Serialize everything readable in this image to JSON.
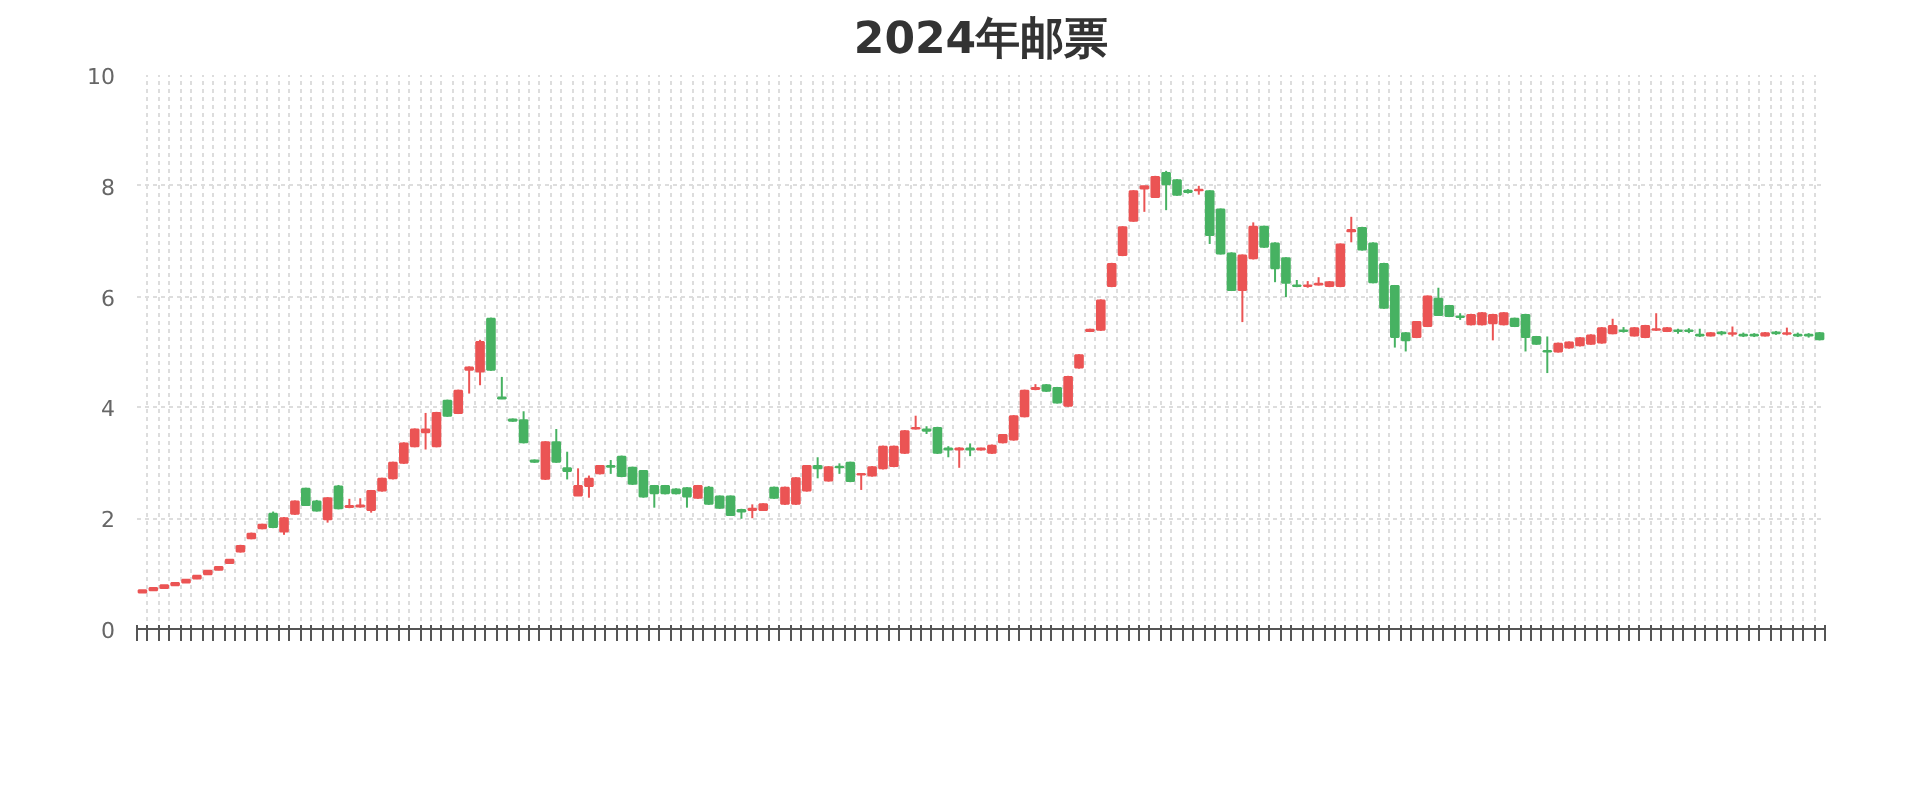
{
  "chart_data": {
    "type": "candlestick",
    "title": "2024年邮票",
    "categories": [
      null,
      null,
      null,
      null,
      null,
      null,
      null,
      null,
      null,
      null,
      null,
      null,
      null,
      null,
      null,
      null,
      null,
      null,
      null,
      null,
      null,
      null,
      null,
      null,
      null,
      null,
      null,
      null,
      null,
      null,
      null,
      null,
      null,
      null,
      null,
      null,
      null,
      null,
      null,
      null,
      null,
      null,
      null,
      null,
      null,
      null,
      null,
      null,
      null,
      null,
      null,
      null,
      null,
      null,
      null,
      null,
      null,
      null,
      null,
      null,
      null,
      null,
      null,
      null,
      null,
      null,
      null,
      null,
      null,
      null,
      null,
      null,
      null,
      null,
      null,
      null,
      null,
      null,
      null,
      null,
      null,
      null,
      null,
      null,
      null,
      null,
      null,
      null,
      null,
      null,
      null,
      null,
      null,
      null,
      null,
      null,
      null,
      null,
      null,
      null,
      null,
      null,
      null,
      null,
      null,
      null,
      null,
      null,
      null,
      null,
      null,
      null,
      null,
      null,
      null,
      null,
      null,
      null,
      null,
      null,
      null,
      null,
      null,
      null,
      null,
      null,
      null,
      null,
      null,
      null,
      null,
      null,
      null,
      null,
      null,
      null,
      null,
      null,
      null,
      null,
      null,
      null,
      null,
      null,
      null,
      null,
      null,
      null,
      null,
      null,
      null,
      null,
      null,
      null,
      null
    ],
    "ohlc": [
      [
        0.66,
        0.7,
        0.65,
        0.7
      ],
      [
        0.7,
        0.74,
        0.69,
        0.74
      ],
      [
        0.74,
        0.79,
        0.73,
        0.79
      ],
      [
        0.79,
        0.83,
        0.78,
        0.83
      ],
      [
        0.84,
        0.89,
        0.83,
        0.89
      ],
      [
        0.91,
        0.96,
        0.9,
        0.96
      ],
      [
        0.99,
        1.05,
        0.98,
        1.05
      ],
      [
        1.07,
        1.12,
        1.06,
        1.12
      ],
      [
        1.19,
        1.25,
        1.18,
        1.25
      ],
      [
        1.4,
        1.52,
        1.38,
        1.5
      ],
      [
        1.64,
        1.74,
        1.62,
        1.72
      ],
      [
        1.82,
        1.9,
        1.8,
        1.88
      ],
      [
        2.08,
        2.12,
        1.82,
        1.84
      ],
      [
        1.76,
        2.02,
        1.7,
        2.0
      ],
      [
        2.08,
        2.32,
        2.06,
        2.3
      ],
      [
        2.53,
        2.55,
        2.22,
        2.24
      ],
      [
        2.3,
        2.33,
        2.12,
        2.14
      ],
      [
        1.98,
        2.38,
        1.92,
        2.36
      ],
      [
        2.57,
        2.6,
        2.16,
        2.18
      ],
      [
        2.2,
        2.35,
        2.18,
        2.22
      ],
      [
        2.21,
        2.36,
        2.19,
        2.23
      ],
      [
        2.15,
        2.51,
        2.1,
        2.49
      ],
      [
        2.5,
        2.73,
        2.48,
        2.71
      ],
      [
        2.72,
        3.02,
        2.7,
        3.0
      ],
      [
        3.0,
        3.37,
        2.98,
        3.35
      ],
      [
        3.3,
        3.62,
        3.28,
        3.6
      ],
      [
        3.55,
        3.9,
        3.24,
        3.6
      ],
      [
        3.3,
        3.92,
        3.28,
        3.9
      ],
      [
        4.12,
        4.14,
        3.83,
        3.85
      ],
      [
        3.9,
        4.32,
        3.88,
        4.3
      ],
      [
        4.68,
        4.74,
        4.25,
        4.72
      ],
      [
        4.65,
        5.22,
        4.4,
        5.18
      ],
      [
        5.6,
        5.62,
        4.66,
        4.68
      ],
      [
        4.18,
        4.55,
        4.15,
        4.16
      ],
      [
        3.78,
        3.8,
        3.74,
        3.76
      ],
      [
        3.77,
        3.93,
        3.35,
        3.37
      ],
      [
        3.04,
        3.06,
        3.0,
        3.02
      ],
      [
        2.71,
        3.39,
        2.69,
        3.37
      ],
      [
        3.37,
        3.61,
        3.0,
        3.02
      ],
      [
        2.9,
        3.2,
        2.7,
        2.85
      ],
      [
        2.41,
        2.9,
        2.4,
        2.58
      ],
      [
        2.58,
        2.77,
        2.37,
        2.71
      ],
      [
        2.81,
        2.96,
        2.79,
        2.94
      ],
      [
        2.94,
        3.05,
        2.8,
        2.93
      ],
      [
        3.11,
        3.13,
        2.74,
        2.76
      ],
      [
        2.91,
        2.93,
        2.6,
        2.62
      ],
      [
        2.85,
        2.87,
        2.37,
        2.39
      ],
      [
        2.58,
        2.6,
        2.19,
        2.45
      ],
      [
        2.58,
        2.6,
        2.43,
        2.45
      ],
      [
        2.52,
        2.54,
        2.43,
        2.45
      ],
      [
        2.54,
        2.56,
        2.19,
        2.39
      ],
      [
        2.37,
        2.6,
        2.35,
        2.58
      ],
      [
        2.55,
        2.58,
        2.24,
        2.26
      ],
      [
        2.39,
        2.41,
        2.17,
        2.19
      ],
      [
        2.39,
        2.41,
        2.04,
        2.06
      ],
      [
        2.15,
        2.17,
        1.99,
        2.12
      ],
      [
        2.15,
        2.25,
        2.0,
        2.17
      ],
      [
        2.15,
        2.27,
        2.13,
        2.25
      ],
      [
        2.55,
        2.57,
        2.35,
        2.37
      ],
      [
        2.26,
        2.57,
        2.24,
        2.55
      ],
      [
        2.26,
        2.74,
        2.24,
        2.72
      ],
      [
        2.5,
        2.96,
        2.48,
        2.94
      ],
      [
        2.94,
        3.1,
        2.72,
        2.9
      ],
      [
        2.68,
        2.94,
        2.66,
        2.92
      ],
      [
        2.93,
        2.99,
        2.8,
        2.92
      ],
      [
        3.0,
        3.02,
        2.65,
        2.67
      ],
      [
        2.79,
        2.81,
        2.51,
        2.8
      ],
      [
        2.77,
        2.94,
        2.75,
        2.92
      ],
      [
        2.9,
        3.31,
        2.88,
        3.29
      ],
      [
        2.94,
        3.31,
        2.92,
        3.29
      ],
      [
        3.18,
        3.59,
        3.16,
        3.57
      ],
      [
        3.62,
        3.85,
        3.6,
        3.63
      ],
      [
        3.6,
        3.66,
        3.52,
        3.58
      ],
      [
        3.63,
        3.65,
        3.16,
        3.18
      ],
      [
        3.26,
        3.3,
        3.1,
        3.24
      ],
      [
        3.24,
        3.28,
        2.91,
        3.26
      ],
      [
        3.26,
        3.35,
        3.12,
        3.24
      ],
      [
        3.24,
        3.27,
        3.22,
        3.26
      ],
      [
        3.18,
        3.33,
        3.16,
        3.31
      ],
      [
        3.37,
        3.52,
        3.35,
        3.5
      ],
      [
        3.42,
        3.86,
        3.4,
        3.84
      ],
      [
        3.84,
        4.32,
        3.82,
        4.3
      ],
      [
        4.33,
        4.42,
        4.31,
        4.35
      ],
      [
        4.4,
        4.42,
        4.28,
        4.3
      ],
      [
        4.35,
        4.37,
        4.07,
        4.09
      ],
      [
        4.03,
        4.57,
        4.01,
        4.55
      ],
      [
        4.72,
        4.96,
        4.7,
        4.94
      ],
      [
        5.38,
        5.42,
        5.36,
        5.4
      ],
      [
        5.4,
        5.95,
        5.38,
        5.93
      ],
      [
        6.19,
        6.61,
        6.17,
        6.59
      ],
      [
        6.75,
        7.27,
        6.73,
        7.25
      ],
      [
        7.37,
        7.92,
        7.35,
        7.9
      ],
      [
        7.95,
        8.0,
        7.53,
        7.99
      ],
      [
        7.8,
        8.18,
        7.78,
        8.16
      ],
      [
        8.23,
        8.27,
        7.56,
        8.03
      ],
      [
        8.1,
        8.12,
        7.82,
        7.84
      ],
      [
        7.91,
        7.94,
        7.86,
        7.89
      ],
      [
        7.92,
        8.0,
        7.84,
        7.93
      ],
      [
        7.9,
        7.92,
        6.95,
        7.11
      ],
      [
        7.57,
        7.59,
        6.76,
        6.78
      ],
      [
        6.78,
        6.8,
        6.1,
        6.12
      ],
      [
        6.12,
        6.76,
        5.54,
        6.74
      ],
      [
        6.69,
        7.34,
        6.67,
        7.26
      ],
      [
        7.26,
        7.28,
        6.88,
        6.9
      ],
      [
        6.96,
        6.98,
        6.26,
        6.51
      ],
      [
        6.69,
        6.71,
        5.99,
        6.25
      ],
      [
        6.2,
        6.3,
        6.17,
        6.19
      ],
      [
        6.19,
        6.28,
        6.16,
        6.2
      ],
      [
        6.22,
        6.35,
        6.2,
        6.23
      ],
      [
        6.19,
        6.28,
        6.17,
        6.26
      ],
      [
        6.19,
        6.96,
        6.17,
        6.94
      ],
      [
        7.18,
        7.44,
        6.98,
        7.2
      ],
      [
        7.24,
        7.26,
        6.83,
        6.85
      ],
      [
        6.96,
        6.98,
        6.24,
        6.26
      ],
      [
        6.59,
        6.61,
        5.78,
        5.8
      ],
      [
        6.19,
        6.21,
        5.08,
        5.27
      ],
      [
        5.34,
        5.36,
        5.01,
        5.21
      ],
      [
        5.27,
        5.56,
        5.25,
        5.54
      ],
      [
        5.47,
        6.02,
        5.45,
        6.0
      ],
      [
        5.96,
        6.16,
        5.65,
        5.67
      ],
      [
        5.83,
        5.85,
        5.63,
        5.65
      ],
      [
        5.64,
        5.7,
        5.58,
        5.63
      ],
      [
        5.5,
        5.69,
        5.48,
        5.67
      ],
      [
        5.5,
        5.72,
        5.48,
        5.7
      ],
      [
        5.52,
        5.69,
        5.21,
        5.67
      ],
      [
        5.5,
        5.72,
        5.48,
        5.7
      ],
      [
        5.6,
        5.62,
        5.45,
        5.47
      ],
      [
        5.67,
        5.69,
        5.01,
        5.27
      ],
      [
        5.27,
        5.29,
        5.13,
        5.15
      ],
      [
        5.02,
        5.28,
        4.62,
        5.01
      ],
      [
        5.01,
        5.17,
        4.99,
        5.15
      ],
      [
        5.08,
        5.19,
        5.06,
        5.17
      ],
      [
        5.12,
        5.27,
        5.1,
        5.25
      ],
      [
        5.15,
        5.32,
        5.13,
        5.3
      ],
      [
        5.17,
        5.45,
        5.15,
        5.43
      ],
      [
        5.34,
        5.6,
        5.32,
        5.47
      ],
      [
        5.39,
        5.45,
        5.35,
        5.38
      ],
      [
        5.3,
        5.45,
        5.28,
        5.43
      ],
      [
        5.27,
        5.49,
        5.25,
        5.47
      ],
      [
        5.4,
        5.7,
        5.38,
        5.41
      ],
      [
        5.38,
        5.45,
        5.36,
        5.43
      ],
      [
        5.39,
        5.42,
        5.33,
        5.38
      ],
      [
        5.39,
        5.43,
        5.34,
        5.38
      ],
      [
        5.31,
        5.42,
        5.27,
        5.3
      ],
      [
        5.3,
        5.36,
        5.28,
        5.34
      ],
      [
        5.35,
        5.38,
        5.3,
        5.34
      ],
      [
        5.33,
        5.46,
        5.28,
        5.34
      ],
      [
        5.31,
        5.35,
        5.27,
        5.3
      ],
      [
        5.31,
        5.34,
        5.27,
        5.3
      ],
      [
        5.3,
        5.36,
        5.28,
        5.34
      ],
      [
        5.35,
        5.38,
        5.31,
        5.34
      ],
      [
        5.33,
        5.44,
        5.3,
        5.34
      ],
      [
        5.31,
        5.35,
        5.27,
        5.3
      ],
      [
        5.31,
        5.34,
        5.26,
        5.3
      ],
      [
        5.34,
        5.36,
        5.21,
        5.23
      ]
    ],
    "colors": [
      "#eb5454",
      "#eb5454",
      "#eb5454",
      "#eb5454",
      "#eb5454",
      "#eb5454",
      "#eb5454",
      "#eb5454",
      "#eb5454",
      "#eb5454",
      "#eb5454",
      "#eb5454",
      "#47b262",
      "#eb5454",
      "#eb5454",
      "#47b262",
      "#47b262",
      "#eb5454",
      "#47b262",
      "#eb5454",
      "#eb5454",
      "#eb5454",
      "#eb5454",
      "#eb5454",
      "#eb5454",
      "#eb5454",
      "#eb5454",
      "#eb5454",
      "#47b262",
      "#eb5454",
      "#eb5454",
      "#eb5454",
      "#47b262",
      "#47b262",
      "#47b262",
      "#47b262",
      "#47b262",
      "#eb5454",
      "#47b262",
      "#47b262",
      "#eb5454",
      "#eb5454",
      "#eb5454",
      "#47b262",
      "#47b262",
      "#47b262",
      "#47b262",
      "#47b262",
      "#47b262",
      "#47b262",
      "#47b262",
      "#eb5454",
      "#47b262",
      "#47b262",
      "#47b262",
      "#47b262",
      "#eb5454",
      "#eb5454",
      "#47b262",
      "#eb5454",
      "#eb5454",
      "#eb5454",
      "#47b262",
      "#eb5454",
      "#47b262",
      "#47b262",
      "#eb5454",
      "#eb5454",
      "#eb5454",
      "#eb5454",
      "#eb5454",
      "#eb5454",
      "#47b262",
      "#47b262",
      "#47b262",
      "#eb5454",
      "#47b262",
      "#eb5454",
      "#eb5454",
      "#eb5454",
      "#eb5454",
      "#eb5454",
      "#eb5454",
      "#47b262",
      "#47b262",
      "#eb5454",
      "#eb5454",
      "#eb5454",
      "#eb5454",
      "#eb5454",
      "#eb5454",
      "#eb5454",
      "#eb5454",
      "#eb5454",
      "#47b262",
      "#47b262",
      "#47b262",
      "#eb5454",
      "#47b262",
      "#47b262",
      "#47b262",
      "#eb5454",
      "#eb5454",
      "#47b262",
      "#47b262",
      "#47b262",
      "#47b262",
      "#eb5454",
      "#eb5454",
      "#eb5454",
      "#eb5454",
      "#eb5454",
      "#47b262",
      "#47b262",
      "#47b262",
      "#47b262",
      "#47b262",
      "#eb5454",
      "#eb5454",
      "#47b262",
      "#47b262",
      "#47b262",
      "#eb5454",
      "#eb5454",
      "#eb5454",
      "#eb5454",
      "#47b262",
      "#47b262",
      "#47b262",
      "#47b262",
      "#eb5454",
      "#eb5454",
      "#eb5454",
      "#eb5454",
      "#eb5454",
      "#eb5454",
      "#47b262",
      "#eb5454",
      "#eb5454",
      "#eb5454",
      "#eb5454",
      "#47b262",
      "#47b262",
      "#47b262",
      "#eb5454",
      "#47b262",
      "#eb5454",
      "#47b262",
      "#47b262",
      "#eb5454",
      "#47b262",
      "#eb5454",
      "#47b262",
      "#47b262",
      "#47b262"
    ],
    "ylim": [
      0,
      10
    ],
    "yticks": [
      0,
      2,
      4,
      6,
      8,
      10
    ],
    "grid": true
  }
}
